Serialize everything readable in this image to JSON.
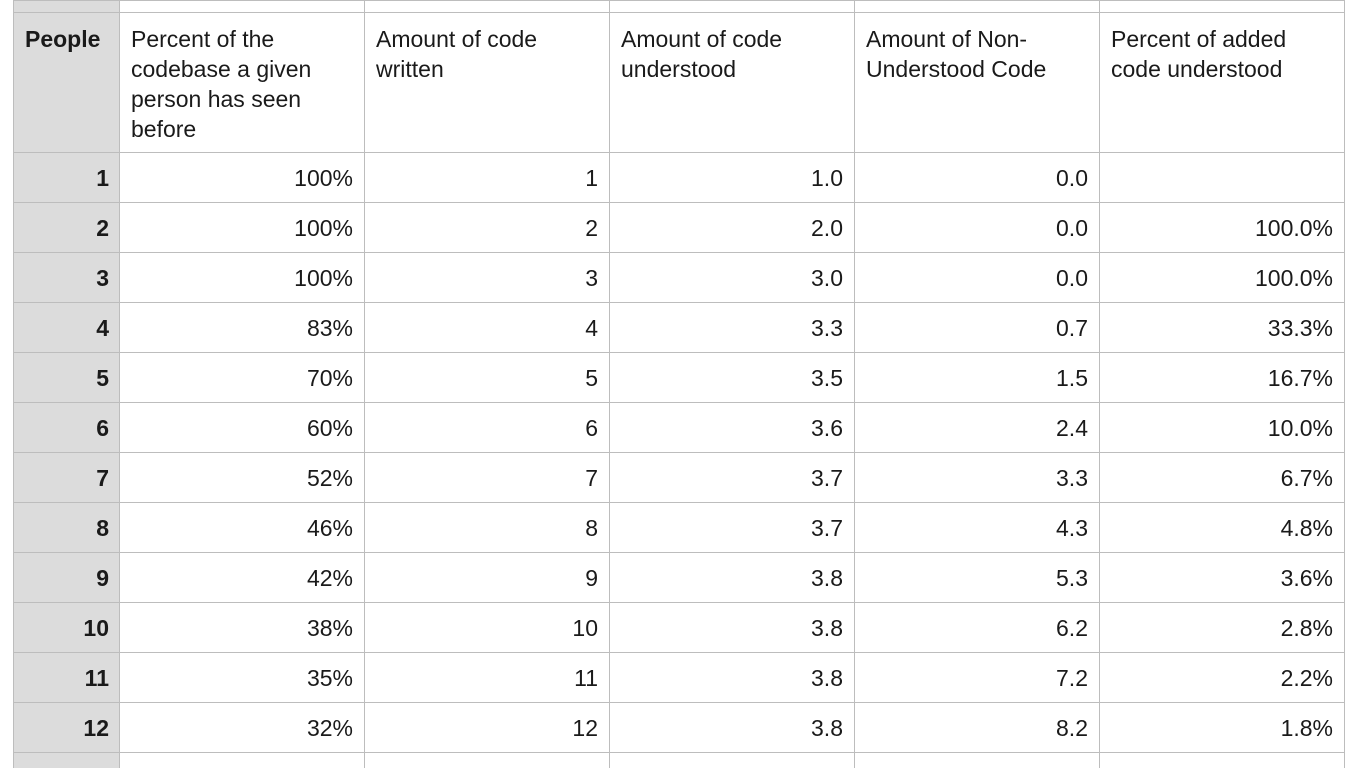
{
  "table": {
    "headers": [
      "People",
      "Percent of the codebase a given person has seen before",
      "Amount of code written",
      "Amount of code understood",
      "Amount of Non-Understood Code",
      "Percent of added code understood"
    ],
    "rows": [
      [
        "1",
        "100%",
        "1",
        "1.0",
        "0.0",
        ""
      ],
      [
        "2",
        "100%",
        "2",
        "2.0",
        "0.0",
        "100.0%"
      ],
      [
        "3",
        "100%",
        "3",
        "3.0",
        "0.0",
        "100.0%"
      ],
      [
        "4",
        "83%",
        "4",
        "3.3",
        "0.7",
        "33.3%"
      ],
      [
        "5",
        "70%",
        "5",
        "3.5",
        "1.5",
        "16.7%"
      ],
      [
        "6",
        "60%",
        "6",
        "3.6",
        "2.4",
        "10.0%"
      ],
      [
        "7",
        "52%",
        "7",
        "3.7",
        "3.3",
        "6.7%"
      ],
      [
        "8",
        "46%",
        "8",
        "3.7",
        "4.3",
        "4.8%"
      ],
      [
        "9",
        "42%",
        "9",
        "3.8",
        "5.3",
        "3.6%"
      ],
      [
        "10",
        "38%",
        "10",
        "3.8",
        "6.2",
        "2.8%"
      ],
      [
        "11",
        "35%",
        "11",
        "3.8",
        "7.2",
        "2.2%"
      ],
      [
        "12",
        "32%",
        "12",
        "3.8",
        "8.2",
        "1.8%"
      ]
    ]
  },
  "colors": {
    "header_fill": "#dcdcdc",
    "gridline": "#bdbdbd",
    "cell_fill": "#ffffff"
  }
}
